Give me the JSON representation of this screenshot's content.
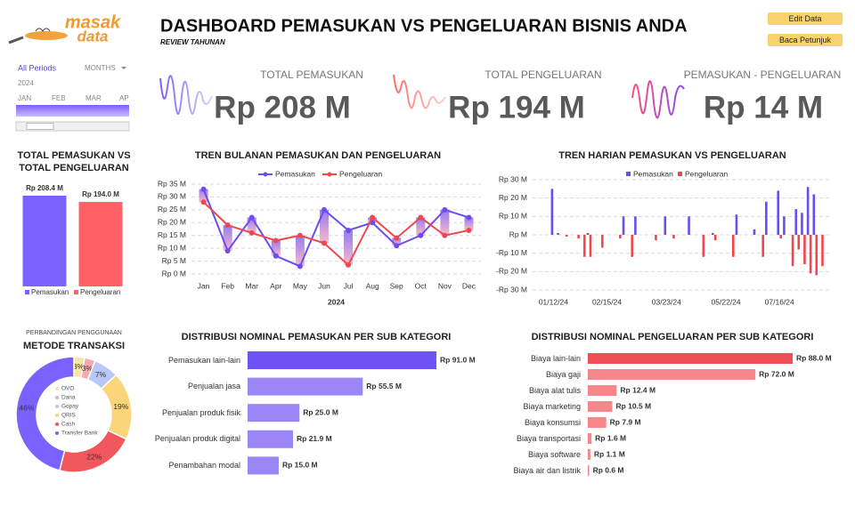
{
  "header": {
    "logo_top": "masak",
    "logo_bottom": "data",
    "title": "DASHBOARD PEMASUKAN VS PENGELUARAN BISNIS ANDA",
    "subtitle": "REVIEW TAHUNAN"
  },
  "buttons": [
    "Edit Data",
    "Baca Petunjuk"
  ],
  "slicer": {
    "selection": "All Periods",
    "level": "MONTHS",
    "year": "2024",
    "months": [
      "JAN",
      "FEB",
      "MAR",
      "APR"
    ]
  },
  "kpis": [
    {
      "label": "TOTAL PEMASUKAN",
      "value": "Rp 208 M"
    },
    {
      "label": "TOTAL PENGELUARAN",
      "value": "Rp 194 M"
    },
    {
      "label": "PEMASUKAN - PENGELUARAN",
      "value": "Rp 14 M"
    }
  ],
  "chart_data": [
    {
      "type": "bar",
      "title": "TOTAL PEMASUKAN VS TOTAL PENGELUARAN",
      "categories": [
        "Pemasukan",
        "Pengeluaran"
      ],
      "values": [
        208.4,
        194.0
      ],
      "value_labels": [
        "Rp 208.4 M",
        "Rp 194.0 M"
      ],
      "colors": [
        "#7b61ff",
        "#ff6166"
      ]
    },
    {
      "type": "line",
      "title": "TREN BULANAN PEMASUKAN DAN PENGELUARAN",
      "x_label": "2024",
      "categories": [
        "Jan",
        "Feb",
        "Mar",
        "Apr",
        "May",
        "Jun",
        "Jul",
        "Aug",
        "Sep",
        "Oct",
        "Nov",
        "Dec"
      ],
      "series": [
        {
          "name": "Pemasukan",
          "color": "#6a4cf0",
          "values": [
            33,
            9,
            22,
            7,
            3,
            25,
            17,
            20,
            11,
            15,
            25,
            22
          ]
        },
        {
          "name": "Pengeluaran",
          "color": "#f0474f",
          "values": [
            28,
            19,
            16,
            13,
            15,
            12,
            3.5,
            22,
            14,
            22,
            15,
            17
          ]
        }
      ],
      "ylim": [
        0,
        35
      ],
      "yticks": [
        {
          "value": 0,
          "label": "Rp 0 M"
        },
        {
          "value": 5,
          "label": "Rp 5 M"
        },
        {
          "value": 10,
          "label": "Rp 10 M"
        },
        {
          "value": 15,
          "label": "Rp 15 M"
        },
        {
          "value": 20,
          "label": "Rp 20 M"
        },
        {
          "value": 25,
          "label": "Rp 25 M"
        },
        {
          "value": 30,
          "label": "Rp 30 M"
        },
        {
          "value": 35,
          "label": "Rp 35 M"
        }
      ],
      "grid": true
    },
    {
      "type": "column",
      "title": "TREN HARIAN PEMASUKAN VS PENGELUARAN",
      "categories": [
        null,
        null,
        null,
        "01/12/24",
        null,
        null,
        null,
        null,
        null,
        null,
        null,
        null,
        "02/15/24",
        null,
        null,
        null,
        null,
        null,
        null,
        null,
        null,
        null,
        "03/23/24",
        null,
        null,
        null,
        null,
        null,
        null,
        null,
        null,
        null,
        "05/22/24",
        null,
        null,
        null,
        null,
        null,
        null,
        null,
        null,
        "07/16/24",
        null,
        null,
        null,
        null,
        null,
        null,
        null,
        null
      ],
      "series": [
        {
          "name": "Pemasukan",
          "color": "#6a4cf0",
          "values": [
            null,
            null,
            null,
            25,
            1,
            null,
            null,
            null,
            null,
            1,
            null,
            null,
            null,
            null,
            null,
            10,
            null,
            10,
            null,
            null,
            null,
            null,
            10,
            null,
            null,
            null,
            10,
            null,
            null,
            null,
            1,
            null,
            null,
            null,
            11,
            null,
            null,
            3,
            null,
            18,
            null,
            24,
            10,
            null,
            14,
            12,
            26,
            22,
            null,
            null
          ]
        },
        {
          "name": "Pengeluaran",
          "color": "#f0474f",
          "values": [
            null,
            null,
            null,
            null,
            null,
            -1,
            null,
            -2,
            -12,
            -12,
            null,
            -7,
            null,
            null,
            -2,
            null,
            -12,
            null,
            null,
            null,
            -3,
            null,
            null,
            -2,
            null,
            null,
            null,
            null,
            -12,
            null,
            -3,
            null,
            null,
            -12,
            null,
            null,
            null,
            null,
            -12,
            null,
            null,
            -2,
            null,
            -17,
            -8,
            -16,
            -21,
            -22,
            -17,
            null
          ]
        }
      ],
      "ylim": [
        -30,
        30
      ],
      "yticks": [
        {
          "value": -30,
          "label": "-Rp 30 M"
        },
        {
          "value": -20,
          "label": "-Rp 20 M"
        },
        {
          "value": -10,
          "label": "-Rp 10 M"
        },
        {
          "value": 0,
          "label": "Rp M"
        },
        {
          "value": 10,
          "label": "Rp 10 M"
        },
        {
          "value": 20,
          "label": "Rp 20 M"
        },
        {
          "value": 30,
          "label": "Rp 30 M"
        }
      ],
      "grid": true
    },
    {
      "type": "donut",
      "subtitle": "PERBANDINGAN PENGGUNAAN",
      "title": "METODE TRANSAKSI",
      "categories": [
        "OVO",
        "Dana",
        "Gopay",
        "QRIS",
        "Cash",
        "Transfer Bank"
      ],
      "values": [
        3,
        3,
        7,
        19,
        22,
        46
      ],
      "value_labels": [
        "3%",
        "3%",
        "7%",
        "19%",
        "22%",
        "46%"
      ],
      "colors": [
        "#fbe3a6",
        "#f7a9b0",
        "#b9c9f7",
        "#fbd57a",
        "#f2575e",
        "#7b61ff"
      ]
    },
    {
      "type": "hbar",
      "title": "DISTRIBUSI NOMINAL PEMASUKAN PER SUB KATEGORI",
      "categories": [
        "Pemasukan lain-lain",
        "Penjualan jasa",
        "Penjualan produk fisik",
        "Penjualan produk digital",
        "Penambahan modal"
      ],
      "values": [
        91.0,
        55.5,
        25.0,
        21.9,
        15.0
      ],
      "value_labels": [
        "Rp 91.0 M",
        "Rp 55.5 M",
        "Rp 25.0 M",
        "Rp 21.9 M",
        "Rp 15.0 M"
      ],
      "colors": [
        "#6f52f5",
        "#9a86f7",
        "#9a86f7",
        "#9a86f7",
        "#9a86f7"
      ]
    },
    {
      "type": "hbar",
      "title": "DISTRIBUSI NOMINAL PENGELUARAN PER SUB KATEGORI",
      "categories": [
        "Biaya lain-lain",
        "Biaya gaji",
        "Biaya alat tulis",
        "Biaya marketing",
        "Biaya konsumsi",
        "Biaya transportasi",
        "Biaya software",
        "Biaya air dan listrik"
      ],
      "values": [
        88.0,
        72.0,
        12.4,
        10.5,
        7.9,
        1.6,
        1.1,
        0.6
      ],
      "value_labels": [
        "Rp 88.0 M",
        "Rp 72.0 M",
        "Rp 12.4 M",
        "Rp 10.5 M",
        "Rp 7.9 M",
        "Rp 1.6 M",
        "Rp 1.1 M",
        "Rp 0.6 M"
      ],
      "colors": [
        "#f04f55",
        "#f7868b",
        "#f7868b",
        "#f7868b",
        "#f7868b",
        "#f7868b",
        "#f7868b",
        "#f7868b"
      ]
    }
  ]
}
